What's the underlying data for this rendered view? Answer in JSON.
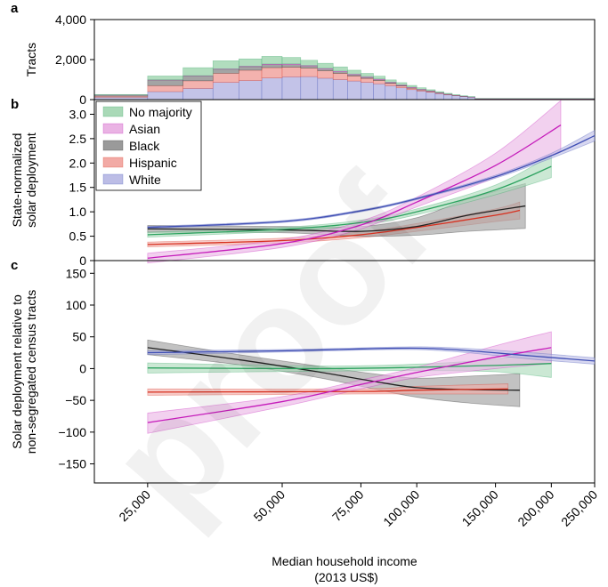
{
  "colors": {
    "No majority": "#2ca25f",
    "Asian": "#c51bba",
    "Black": "#222222",
    "Hispanic": "#d7301f",
    "White": "#3f4fb4"
  },
  "fills": {
    "No majority": "#a9d9b7",
    "Asian": "#eab3e4",
    "Black": "#9a9a9a",
    "Hispanic": "#f2aaa5",
    "White": "#bcbde6"
  },
  "watermark": "proof",
  "chart_data": [
    {
      "panel": "a",
      "type": "bar",
      "stacked": true,
      "ylabel": "Tracts",
      "ylim": [
        0,
        4000
      ],
      "yticks": [
        0,
        2000,
        4000
      ],
      "ytick_labels": [
        "0",
        "2,000",
        "4,000"
      ],
      "xscale": "log",
      "xlim": [
        19000,
        250000
      ],
      "bin_edges": [
        19000,
        25000,
        30000,
        35000,
        40000,
        45000,
        50000,
        55000,
        60000,
        65000,
        70000,
        75000,
        80000,
        85000,
        90000,
        95000,
        100000,
        105000,
        110000,
        115000,
        120000,
        125000,
        130000,
        135000,
        250000
      ],
      "series": [
        {
          "name": "White",
          "values": [
            120,
            400,
            560,
            860,
            950,
            1080,
            1140,
            1150,
            1070,
            1000,
            930,
            860,
            790,
            690,
            590,
            500,
            430,
            370,
            300,
            240,
            190,
            150,
            120,
            40
          ]
        },
        {
          "name": "Hispanic",
          "values": [
            50,
            300,
            380,
            460,
            520,
            520,
            480,
            420,
            370,
            310,
            250,
            200,
            160,
            120,
            90,
            70,
            50,
            35,
            25,
            18,
            12,
            8,
            6,
            3
          ]
        },
        {
          "name": "Black",
          "values": [
            60,
            280,
            240,
            200,
            180,
            150,
            130,
            110,
            90,
            80,
            65,
            55,
            45,
            35,
            28,
            22,
            16,
            12,
            9,
            6,
            5,
            4,
            3,
            2
          ]
        },
        {
          "name": "Asian",
          "values": [
            4,
            10,
            15,
            20,
            25,
            30,
            35,
            35,
            35,
            35,
            35,
            35,
            35,
            30,
            30,
            28,
            25,
            22,
            18,
            15,
            12,
            10,
            8,
            5
          ]
        },
        {
          "name": "No majority",
          "values": [
            20,
            190,
            400,
            400,
            360,
            380,
            320,
            250,
            250,
            210,
            190,
            160,
            140,
            110,
            110,
            90,
            70,
            55,
            45,
            35,
            25,
            20,
            15,
            8
          ]
        }
      ]
    },
    {
      "panel": "b",
      "type": "line",
      "ylabel": [
        "State-normalized",
        "solar deployment"
      ],
      "ylim": [
        0,
        3.3
      ],
      "yticks": [
        0,
        0.5,
        1.0,
        1.5,
        2.0,
        2.5,
        3.0
      ],
      "ytick_labels": [
        "0",
        "0.5",
        "1.0",
        "1.5",
        "2.0",
        "2.5",
        "3.0"
      ],
      "xscale": "log",
      "xlim": [
        19000,
        250000
      ],
      "legend": {
        "position": "top-left",
        "entries": [
          "No majority",
          "Asian",
          "Black",
          "Hispanic",
          "White"
        ]
      },
      "series": [
        {
          "name": "Hispanic",
          "x": [
            25000,
            50000,
            75000,
            100000,
            150000,
            170000
          ],
          "y": [
            0.33,
            0.41,
            0.53,
            0.68,
            0.93,
            1.03
          ],
          "lower": [
            0.28,
            0.36,
            0.47,
            0.6,
            0.8,
            0.85
          ],
          "upper": [
            0.38,
            0.46,
            0.59,
            0.76,
            1.06,
            1.2
          ]
        },
        {
          "name": "Black",
          "x": [
            25000,
            50000,
            75000,
            100000,
            130000,
            175000
          ],
          "y": [
            0.65,
            0.63,
            0.6,
            0.7,
            0.93,
            1.12
          ],
          "lower": [
            0.58,
            0.57,
            0.5,
            0.52,
            0.6,
            0.66
          ],
          "upper": [
            0.72,
            0.7,
            0.7,
            0.88,
            1.26,
            1.58
          ]
        },
        {
          "name": "No majority",
          "x": [
            25000,
            50000,
            75000,
            100000,
            150000,
            200000
          ],
          "y": [
            0.53,
            0.64,
            0.78,
            1.0,
            1.45,
            1.93
          ],
          "lower": [
            0.48,
            0.6,
            0.73,
            0.94,
            1.35,
            1.7
          ],
          "upper": [
            0.58,
            0.68,
            0.83,
            1.06,
            1.55,
            2.16
          ]
        },
        {
          "name": "Asian",
          "x": [
            25000,
            50000,
            75000,
            100000,
            150000,
            210000
          ],
          "y": [
            0.05,
            0.35,
            0.73,
            1.2,
            1.95,
            2.78
          ],
          "lower": [
            -0.05,
            0.27,
            0.65,
            1.1,
            1.7,
            2.25
          ],
          "upper": [
            0.15,
            0.43,
            0.81,
            1.3,
            2.2,
            3.28
          ]
        },
        {
          "name": "White",
          "x": [
            25000,
            50000,
            75000,
            100000,
            150000,
            200000,
            250000
          ],
          "y": [
            0.68,
            0.8,
            1.02,
            1.27,
            1.72,
            2.15,
            2.56
          ],
          "lower": [
            0.66,
            0.78,
            1.0,
            1.25,
            1.69,
            2.1,
            2.45
          ],
          "upper": [
            0.7,
            0.82,
            1.04,
            1.29,
            1.75,
            2.2,
            2.67
          ]
        }
      ]
    },
    {
      "panel": "c",
      "type": "line",
      "ylabel": [
        "Solar deployment relative to",
        "non-segregated census tracts"
      ],
      "xlabel": [
        "Median household income",
        "(2013 US$)"
      ],
      "ylim": [
        -180,
        170
      ],
      "yticks": [
        -150,
        -100,
        -50,
        0,
        50,
        100,
        150
      ],
      "ytick_labels": [
        "−150",
        "−100",
        "−50",
        "0",
        "50",
        "100",
        "150"
      ],
      "xscale": "log",
      "xlim": [
        19000,
        250000
      ],
      "xticks": [
        25000,
        50000,
        75000,
        100000,
        150000,
        200000,
        250000
      ],
      "xtick_labels": [
        "25,000",
        "50,000",
        "75,000",
        "100,000",
        "150,000",
        "200,000",
        "250,000"
      ],
      "series": [
        {
          "name": "Black",
          "x": [
            25000,
            40000,
            60000,
            80000,
            100000,
            130000,
            170000
          ],
          "y": [
            33,
            14,
            -5,
            -20,
            -30,
            -33,
            -34
          ],
          "lower": [
            22,
            6,
            -14,
            -32,
            -45,
            -54,
            -60
          ],
          "upper": [
            45,
            22,
            4,
            -8,
            -15,
            -12,
            -8
          ]
        },
        {
          "name": "Hispanic",
          "x": [
            25000,
            75000,
            100000,
            160000
          ],
          "y": [
            -37,
            -36,
            -34,
            -32
          ],
          "lower": [
            -42,
            -40,
            -40,
            -40
          ],
          "upper": [
            -32,
            -32,
            -28,
            -24
          ]
        },
        {
          "name": "No majority",
          "x": [
            25000,
            60000,
            100000,
            150000,
            200000
          ],
          "y": [
            1,
            0,
            2,
            5,
            8
          ],
          "lower": [
            -7,
            -4,
            -3,
            -5,
            -14
          ],
          "upper": [
            9,
            4,
            7,
            15,
            30
          ]
        },
        {
          "name": "Asian",
          "x": [
            25000,
            50000,
            75000,
            100000,
            150000,
            200000
          ],
          "y": [
            -85,
            -52,
            -25,
            -6,
            18,
            33
          ],
          "lower": [
            -102,
            -60,
            -32,
            -14,
            0,
            8
          ],
          "upper": [
            -70,
            -44,
            -18,
            2,
            36,
            58
          ]
        },
        {
          "name": "White",
          "x": [
            25000,
            50000,
            90000,
            120000,
            180000,
            250000
          ],
          "y": [
            25,
            28,
            32,
            30,
            20,
            12
          ],
          "lower": [
            22,
            26,
            30,
            27,
            15,
            7
          ],
          "upper": [
            28,
            30,
            34,
            33,
            25,
            17
          ]
        }
      ]
    }
  ]
}
